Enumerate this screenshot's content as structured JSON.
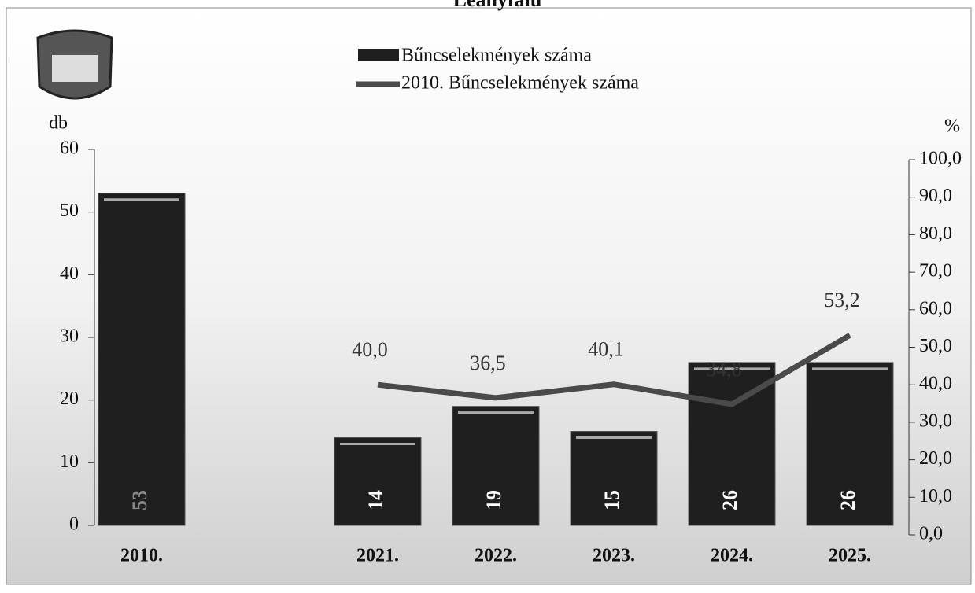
{
  "chart_data": {
    "type": "bar_line",
    "title": "Leányfalu",
    "y_label": "db",
    "y2_label": "%",
    "categories": [
      "2010.",
      null,
      "2021.",
      "2022.",
      "2023.",
      "2024.",
      "2025."
    ],
    "series": [
      {
        "name": "Bűncselekmények száma",
        "type": "bar",
        "color": "#1f1f1f",
        "values": [
          53,
          null,
          14,
          19,
          15,
          26,
          26
        ]
      },
      {
        "name": "2010. Bűncselekmények száma",
        "type": "line",
        "axis": "y2",
        "color": "#4a4a4a",
        "values": [
          null,
          null,
          40.0,
          36.5,
          40.1,
          34.8,
          53.2
        ],
        "value_labels": [
          null,
          null,
          "40,0",
          "36,5",
          "40,1",
          "34,8",
          "53,2"
        ]
      }
    ],
    "ylim": [
      0,
      60
    ],
    "yticks": [
      0,
      10,
      20,
      30,
      40,
      50,
      60
    ],
    "y2lim": [
      0,
      100
    ],
    "y2ticks": [
      {
        "value": 0,
        "label": "0,0"
      },
      {
        "value": 10,
        "label": "10,0"
      },
      {
        "value": 20,
        "label": "20,0"
      },
      {
        "value": 30,
        "label": "30,0"
      },
      {
        "value": 40,
        "label": "40,0"
      },
      {
        "value": 50,
        "label": "50,0"
      },
      {
        "value": 60,
        "label": "60,0"
      },
      {
        "value": 70,
        "label": "70,0"
      },
      {
        "value": 80,
        "label": "80,0"
      },
      {
        "value": 90,
        "label": "90,0"
      },
      {
        "value": 100,
        "label": "100,0"
      }
    ],
    "legend": "top"
  }
}
